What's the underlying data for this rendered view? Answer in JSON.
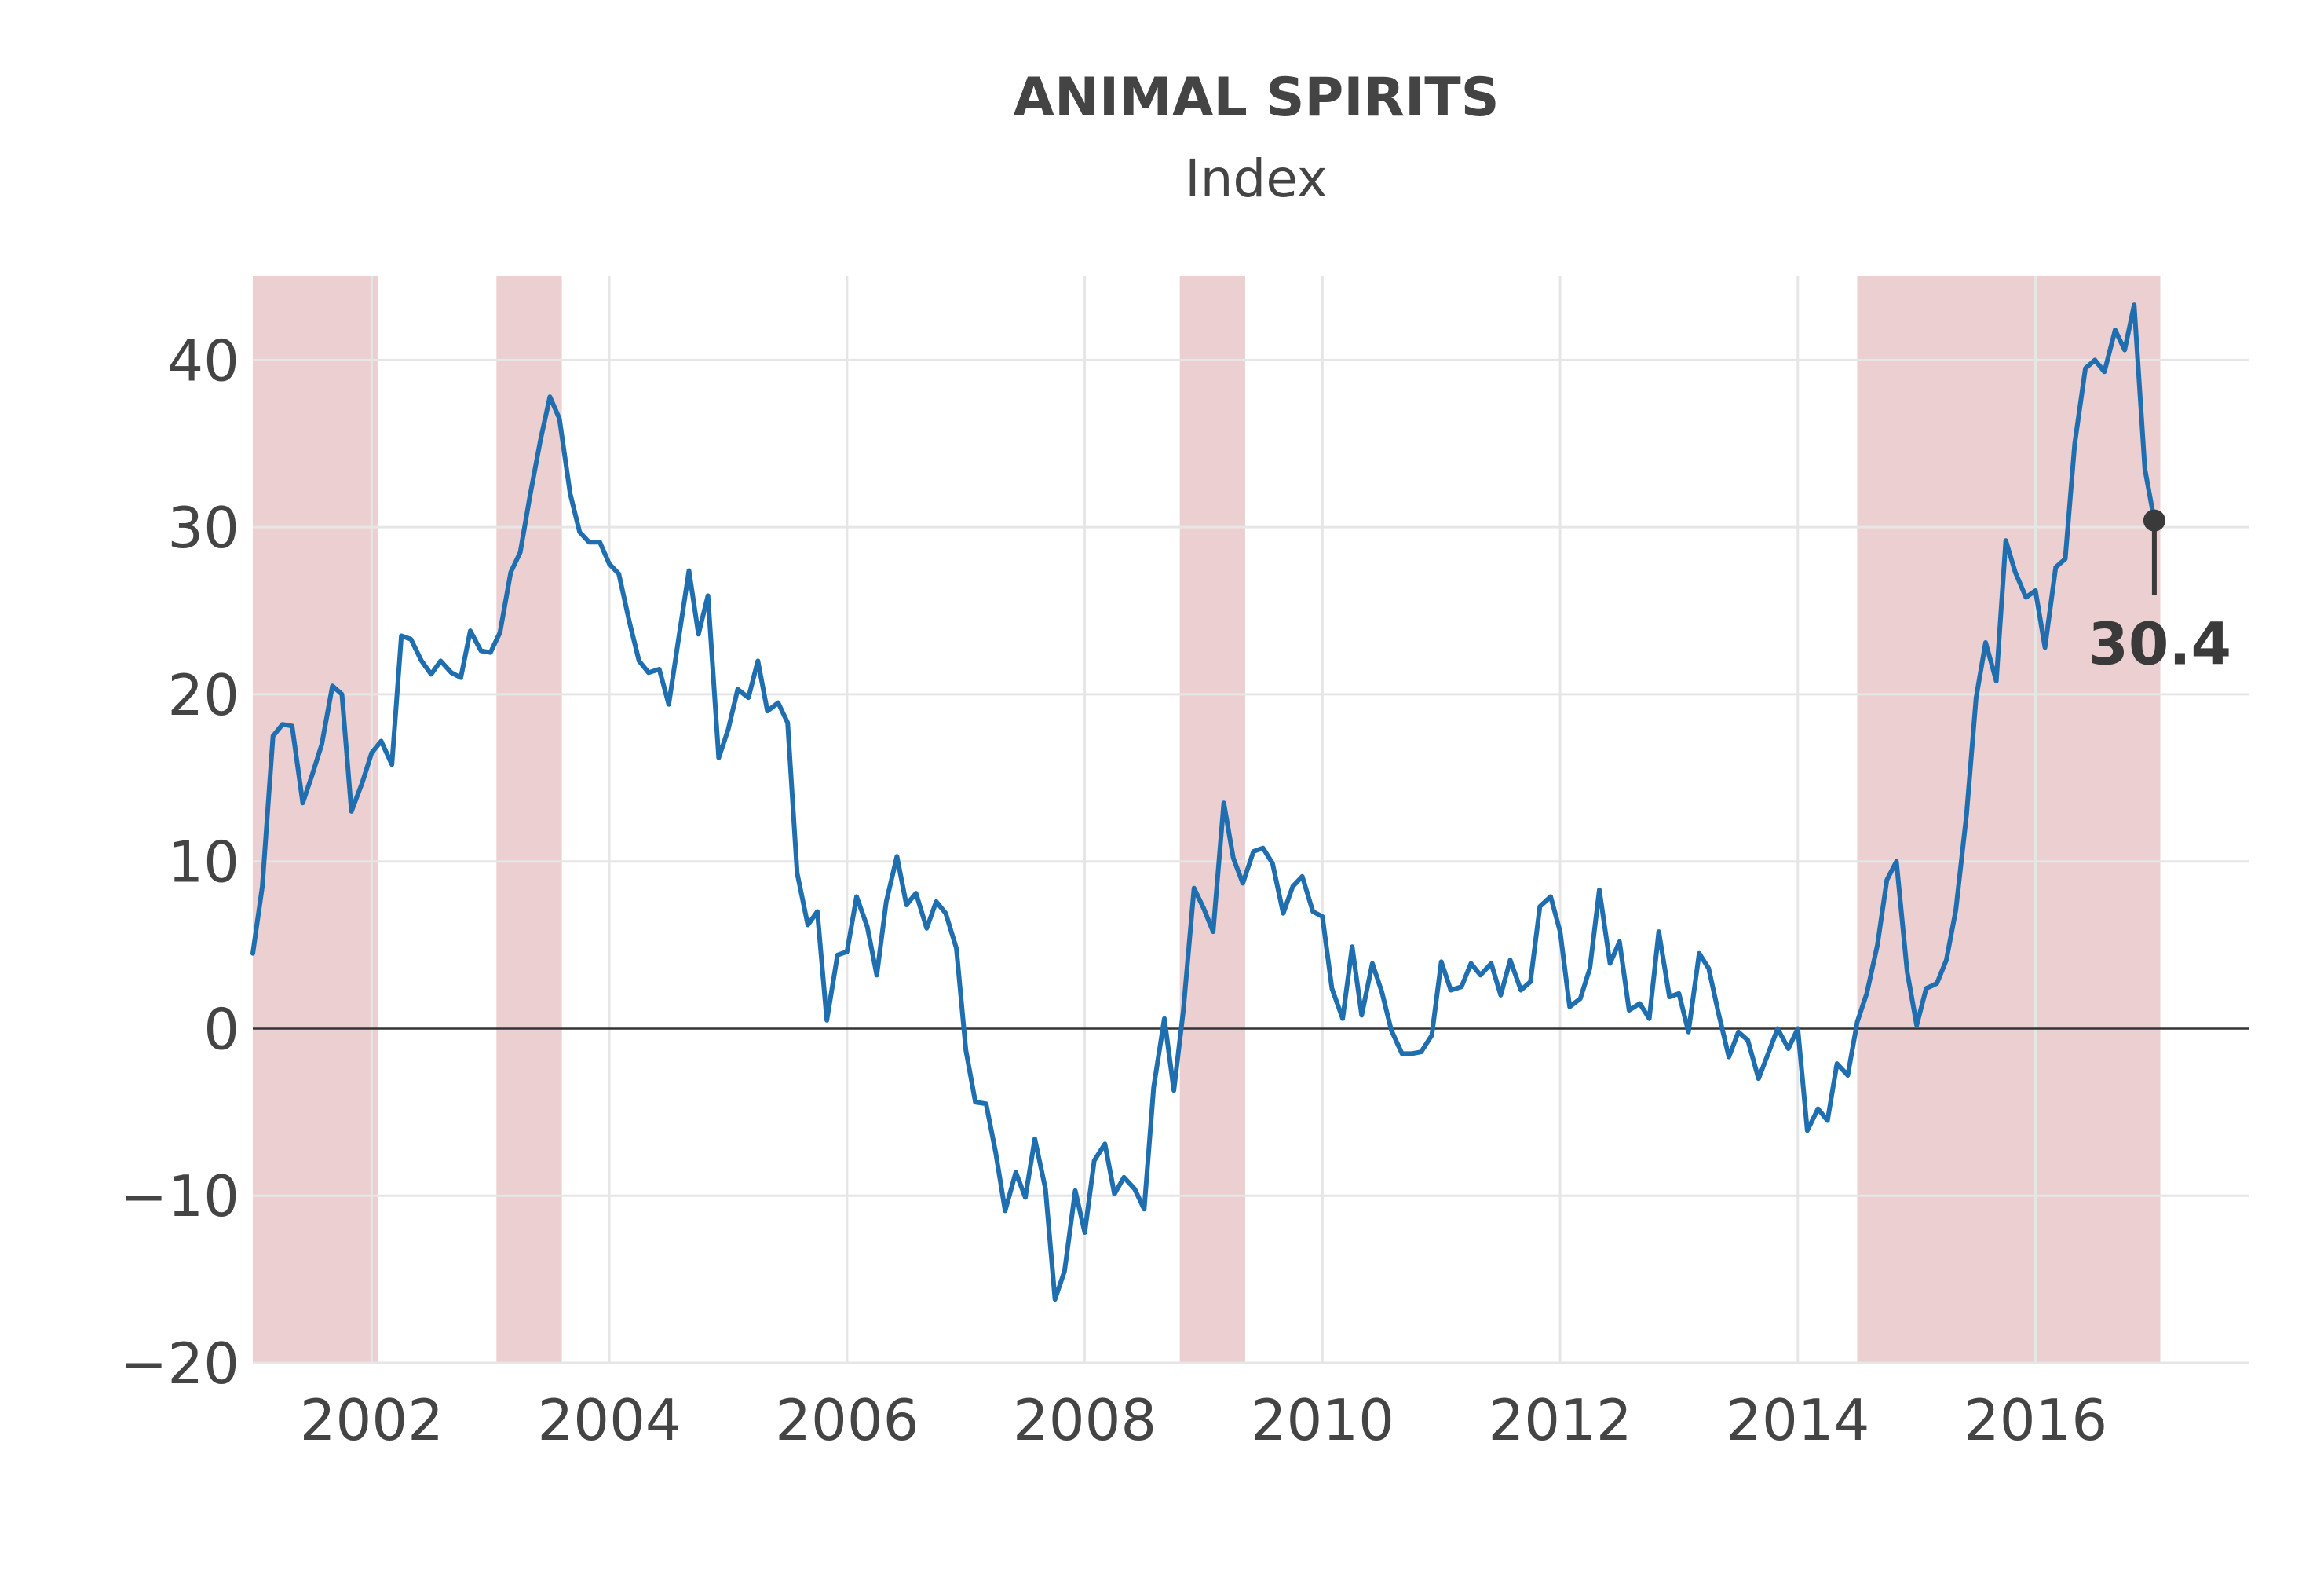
{
  "chart_data": {
    "type": "line",
    "title": "ANIMAL SPIRITS",
    "subtitle": "Index",
    "xlabel": "",
    "ylabel": "",
    "xlim": [
      2001.0,
      2017.8
    ],
    "ylim": [
      -20,
      45
    ],
    "x_ticks": [
      2002,
      2004,
      2006,
      2008,
      2010,
      2012,
      2014,
      2016
    ],
    "y_ticks": [
      -20,
      -10,
      0,
      10,
      20,
      30,
      40
    ],
    "x_tick_labels": [
      "2002",
      "2004",
      "2006",
      "2008",
      "2010",
      "2012",
      "2014",
      "2016"
    ],
    "y_tick_labels": [
      "−20",
      "−10",
      "0",
      "10",
      "20",
      "30",
      "40"
    ],
    "grid": true,
    "shaded_periods": [
      {
        "start": 2001.0,
        "end": 2002.05
      },
      {
        "start": 2003.05,
        "end": 2003.6
      },
      {
        "start": 2008.8,
        "end": 2009.35
      },
      {
        "start": 2014.5,
        "end": 2017.05
      }
    ],
    "series": [
      {
        "values": [
          [
            2001.0,
            4.5
          ],
          [
            2001.08,
            8.5
          ],
          [
            2001.17,
            17.5
          ],
          [
            2001.25,
            18.2
          ],
          [
            2001.33,
            18.1
          ],
          [
            2001.42,
            13.5
          ],
          [
            2001.5,
            15.2
          ],
          [
            2001.58,
            17.0
          ],
          [
            2001.67,
            20.5
          ],
          [
            2001.75,
            20.0
          ],
          [
            2001.83,
            13.0
          ],
          [
            2001.92,
            14.7
          ],
          [
            2002.0,
            16.5
          ],
          [
            2002.08,
            17.2
          ],
          [
            2002.17,
            15.8
          ],
          [
            2002.25,
            23.5
          ],
          [
            2002.33,
            23.3
          ],
          [
            2002.42,
            22.0
          ],
          [
            2002.5,
            21.2
          ],
          [
            2002.58,
            22.0
          ],
          [
            2002.67,
            21.3
          ],
          [
            2002.75,
            21.0
          ],
          [
            2002.83,
            23.8
          ],
          [
            2002.92,
            22.6
          ],
          [
            2003.0,
            22.5
          ],
          [
            2003.08,
            23.7
          ],
          [
            2003.17,
            27.3
          ],
          [
            2003.25,
            28.5
          ],
          [
            2003.33,
            31.8
          ],
          [
            2003.42,
            35.2
          ],
          [
            2003.5,
            37.8
          ],
          [
            2003.58,
            36.5
          ],
          [
            2003.67,
            32.0
          ],
          [
            2003.75,
            29.7
          ],
          [
            2003.83,
            29.1
          ],
          [
            2003.92,
            29.1
          ],
          [
            2004.0,
            27.8
          ],
          [
            2004.08,
            27.2
          ],
          [
            2004.17,
            24.3
          ],
          [
            2004.25,
            22.0
          ],
          [
            2004.33,
            21.3
          ],
          [
            2004.42,
            21.5
          ],
          [
            2004.5,
            19.4
          ],
          [
            2004.58,
            23.2
          ],
          [
            2004.67,
            27.4
          ],
          [
            2004.75,
            23.6
          ],
          [
            2004.83,
            25.9
          ],
          [
            2004.92,
            16.2
          ],
          [
            2005.0,
            17.9
          ],
          [
            2005.08,
            20.3
          ],
          [
            2005.17,
            19.8
          ],
          [
            2005.25,
            22.0
          ],
          [
            2005.33,
            19.0
          ],
          [
            2005.42,
            19.5
          ],
          [
            2005.5,
            18.3
          ],
          [
            2005.58,
            9.3
          ],
          [
            2005.67,
            6.2
          ],
          [
            2005.75,
            7.0
          ],
          [
            2005.83,
            0.5
          ],
          [
            2005.92,
            4.4
          ],
          [
            2006.0,
            4.6
          ],
          [
            2006.08,
            7.9
          ],
          [
            2006.17,
            6.1
          ],
          [
            2006.25,
            3.2
          ],
          [
            2006.33,
            7.6
          ],
          [
            2006.42,
            10.3
          ],
          [
            2006.5,
            7.4
          ],
          [
            2006.58,
            8.1
          ],
          [
            2006.67,
            6.0
          ],
          [
            2006.75,
            7.6
          ],
          [
            2006.83,
            6.9
          ],
          [
            2006.92,
            4.8
          ],
          [
            2007.0,
            -1.3
          ],
          [
            2007.08,
            -4.4
          ],
          [
            2007.17,
            -4.5
          ],
          [
            2007.25,
            -7.4
          ],
          [
            2007.33,
            -10.9
          ],
          [
            2007.42,
            -8.6
          ],
          [
            2007.5,
            -10.1
          ],
          [
            2007.58,
            -6.6
          ],
          [
            2007.67,
            -9.6
          ],
          [
            2007.75,
            -16.2
          ],
          [
            2007.83,
            -14.5
          ],
          [
            2007.92,
            -9.7
          ],
          [
            2008.0,
            -12.2
          ],
          [
            2008.08,
            -7.9
          ],
          [
            2008.17,
            -6.9
          ],
          [
            2008.25,
            -9.9
          ],
          [
            2008.33,
            -8.9
          ],
          [
            2008.42,
            -9.6
          ],
          [
            2008.5,
            -10.8
          ],
          [
            2008.58,
            -3.5
          ],
          [
            2008.67,
            0.6
          ],
          [
            2008.75,
            -3.7
          ],
          [
            2008.83,
            1.1
          ],
          [
            2008.92,
            8.4
          ],
          [
            2009.0,
            7.2
          ],
          [
            2009.08,
            5.8
          ],
          [
            2009.17,
            13.5
          ],
          [
            2009.25,
            10.2
          ],
          [
            2009.33,
            8.7
          ],
          [
            2009.42,
            10.6
          ],
          [
            2009.5,
            10.8
          ],
          [
            2009.58,
            9.9
          ],
          [
            2009.67,
            6.9
          ],
          [
            2009.75,
            8.5
          ],
          [
            2009.83,
            9.1
          ],
          [
            2009.92,
            7.0
          ],
          [
            2010.0,
            6.7
          ],
          [
            2010.08,
            2.4
          ],
          [
            2010.17,
            0.6
          ],
          [
            2010.25,
            4.9
          ],
          [
            2010.33,
            0.8
          ],
          [
            2010.42,
            3.9
          ],
          [
            2010.5,
            2.2
          ],
          [
            2010.58,
            -0.1
          ],
          [
            2010.67,
            -1.5
          ],
          [
            2010.75,
            -1.5
          ],
          [
            2010.83,
            -1.4
          ],
          [
            2010.92,
            -0.4
          ],
          [
            2011.0,
            4.0
          ],
          [
            2011.08,
            2.3
          ],
          [
            2011.17,
            2.5
          ],
          [
            2011.25,
            3.9
          ],
          [
            2011.33,
            3.2
          ],
          [
            2011.42,
            3.9
          ],
          [
            2011.5,
            2.0
          ],
          [
            2011.58,
            4.1
          ],
          [
            2011.67,
            2.3
          ],
          [
            2011.75,
            2.8
          ],
          [
            2011.83,
            7.3
          ],
          [
            2011.92,
            7.9
          ],
          [
            2012.0,
            5.8
          ],
          [
            2012.08,
            1.3
          ],
          [
            2012.17,
            1.8
          ],
          [
            2012.25,
            3.6
          ],
          [
            2012.33,
            8.3
          ],
          [
            2012.42,
            3.9
          ],
          [
            2012.5,
            5.2
          ],
          [
            2012.58,
            1.1
          ],
          [
            2012.67,
            1.5
          ],
          [
            2012.75,
            0.6
          ],
          [
            2012.83,
            5.8
          ],
          [
            2012.92,
            1.9
          ],
          [
            2013.0,
            2.1
          ],
          [
            2013.08,
            -0.2
          ],
          [
            2013.17,
            4.5
          ],
          [
            2013.25,
            3.6
          ],
          [
            2013.33,
            1.0
          ],
          [
            2013.42,
            -1.7
          ],
          [
            2013.5,
            -0.2
          ],
          [
            2013.58,
            -0.7
          ],
          [
            2013.67,
            -3.0
          ],
          [
            2013.75,
            -1.5
          ],
          [
            2013.83,
            0.0
          ],
          [
            2013.92,
            -1.2
          ],
          [
            2014.0,
            0.0
          ],
          [
            2014.08,
            -6.1
          ],
          [
            2014.17,
            -4.8
          ],
          [
            2014.25,
            -5.5
          ],
          [
            2014.33,
            -2.1
          ],
          [
            2014.42,
            -2.8
          ],
          [
            2014.5,
            0.4
          ],
          [
            2014.58,
            2.1
          ],
          [
            2014.67,
            5.0
          ],
          [
            2014.75,
            8.9
          ],
          [
            2014.83,
            10.0
          ],
          [
            2014.92,
            3.4
          ],
          [
            2015.0,
            0.2
          ],
          [
            2015.08,
            2.4
          ],
          [
            2015.17,
            2.7
          ],
          [
            2015.25,
            4.1
          ],
          [
            2015.33,
            7.1
          ],
          [
            2015.42,
            12.8
          ],
          [
            2015.5,
            19.8
          ],
          [
            2015.58,
            23.1
          ],
          [
            2015.67,
            20.8
          ],
          [
            2015.75,
            29.2
          ],
          [
            2015.83,
            27.3
          ],
          [
            2015.92,
            25.8
          ],
          [
            2016.0,
            26.2
          ],
          [
            2016.08,
            22.8
          ],
          [
            2016.17,
            27.6
          ],
          [
            2016.25,
            28.1
          ],
          [
            2016.33,
            35.0
          ],
          [
            2016.42,
            39.5
          ],
          [
            2016.5,
            40.0
          ],
          [
            2016.58,
            39.3
          ],
          [
            2016.67,
            41.8
          ],
          [
            2016.75,
            40.6
          ],
          [
            2016.83,
            43.3
          ],
          [
            2016.92,
            33.5
          ],
          [
            2017.0,
            30.4
          ]
        ]
      }
    ],
    "annotation": {
      "x": 2017.0,
      "y": 30.4,
      "label": "30.4"
    },
    "colors": {
      "line": "#1f6fb0",
      "shade": "#ebcfd1",
      "grid": "#e6e6e6",
      "zero_line": "#333333",
      "marker": "#3a3a3a",
      "text": "#444444"
    }
  }
}
